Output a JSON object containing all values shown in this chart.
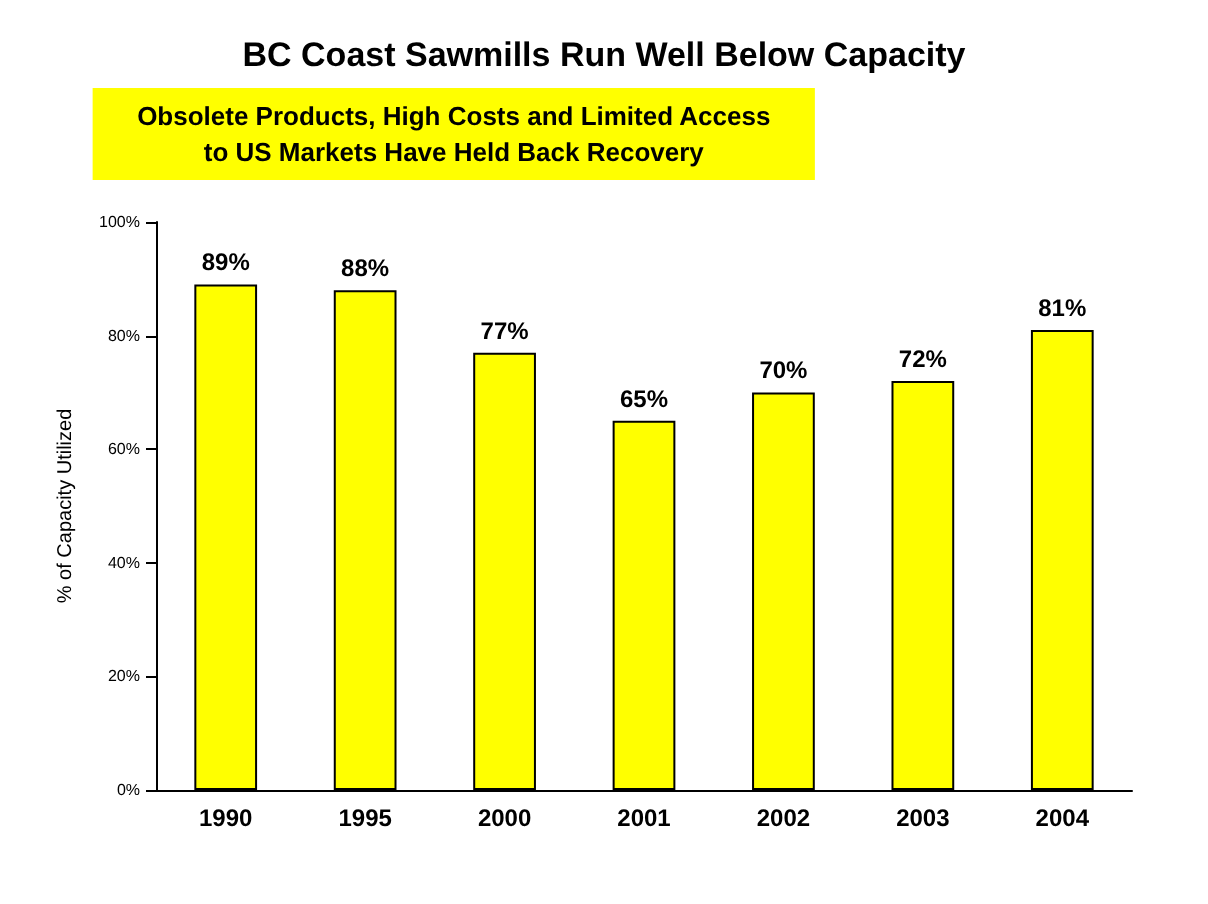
{
  "chart_data": {
    "type": "bar",
    "title": "BC Coast Sawmills Run Well Below Capacity",
    "subtitle": "Obsolete Products, High Costs and Limited Access\nto US Markets Have Held Back Recovery",
    "ylabel": "% of Capacity Utilized",
    "categories": [
      "1990",
      "1995",
      "2000",
      "2001",
      "2002",
      "2003",
      "2004"
    ],
    "values": [
      89,
      88,
      77,
      65,
      70,
      72,
      81
    ],
    "value_labels": [
      "89%",
      "88%",
      "77%",
      "65%",
      "70%",
      "72%",
      "81%"
    ],
    "color": "#ffff00",
    "ylim": [
      0,
      100
    ],
    "yticks": [
      {
        "value": 0,
        "label": "0%"
      },
      {
        "value": 20,
        "label": "20%"
      },
      {
        "value": 40,
        "label": "40%"
      },
      {
        "value": 60,
        "label": "60%"
      },
      {
        "value": 80,
        "label": "80%"
      },
      {
        "value": 100,
        "label": "100%"
      }
    ],
    "grid": false
  }
}
